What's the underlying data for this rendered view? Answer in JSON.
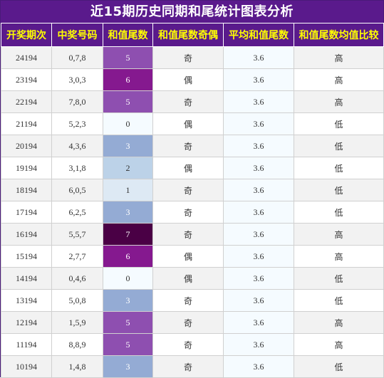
{
  "title": "近15期历史同期和尾统计图表分析",
  "headers": [
    "开奖期次",
    "中奖号码",
    "和值尾数",
    "和值尾数奇偶",
    "平均和值尾数",
    "和值尾数均值比较"
  ],
  "rows": [
    {
      "period": "24194",
      "numbers": "0,7,8",
      "tail": "5",
      "parity": "奇",
      "avg": "3.6",
      "compare": "高",
      "color": "#8e4fb0"
    },
    {
      "period": "23194",
      "numbers": "3,0,3",
      "tail": "6",
      "parity": "偶",
      "avg": "3.6",
      "compare": "高",
      "color": "#85198f"
    },
    {
      "period": "22194",
      "numbers": "7,8,0",
      "tail": "5",
      "parity": "奇",
      "avg": "3.6",
      "compare": "高",
      "color": "#8e4fb0"
    },
    {
      "period": "21194",
      "numbers": "5,2,3",
      "tail": "0",
      "parity": "偶",
      "avg": "3.6",
      "compare": "低",
      "color": "#f5fbff"
    },
    {
      "period": "20194",
      "numbers": "4,3,6",
      "tail": "3",
      "parity": "奇",
      "avg": "3.6",
      "compare": "低",
      "color": "#94abd4"
    },
    {
      "period": "19194",
      "numbers": "3,1,8",
      "tail": "2",
      "parity": "偶",
      "avg": "3.6",
      "compare": "低",
      "color": "#bcd2e8"
    },
    {
      "period": "18194",
      "numbers": "6,0,5",
      "tail": "1",
      "parity": "奇",
      "avg": "3.6",
      "compare": "低",
      "color": "#dde9f4"
    },
    {
      "period": "17194",
      "numbers": "6,2,5",
      "tail": "3",
      "parity": "奇",
      "avg": "3.6",
      "compare": "低",
      "color": "#94abd4"
    },
    {
      "period": "16194",
      "numbers": "5,5,7",
      "tail": "7",
      "parity": "奇",
      "avg": "3.6",
      "compare": "高",
      "color": "#4a0045"
    },
    {
      "period": "15194",
      "numbers": "2,7,7",
      "tail": "6",
      "parity": "偶",
      "avg": "3.6",
      "compare": "高",
      "color": "#85198f"
    },
    {
      "period": "14194",
      "numbers": "0,4,6",
      "tail": "0",
      "parity": "偶",
      "avg": "3.6",
      "compare": "低",
      "color": "#f5fbff"
    },
    {
      "period": "13194",
      "numbers": "5,0,8",
      "tail": "3",
      "parity": "奇",
      "avg": "3.6",
      "compare": "低",
      "color": "#94abd4"
    },
    {
      "period": "12194",
      "numbers": "1,5,9",
      "tail": "5",
      "parity": "奇",
      "avg": "3.6",
      "compare": "高",
      "color": "#8e4fb0"
    },
    {
      "period": "11194",
      "numbers": "8,8,9",
      "tail": "5",
      "parity": "奇",
      "avg": "3.6",
      "compare": "高",
      "color": "#8e4fb0"
    },
    {
      "period": "10194",
      "numbers": "1,4,8",
      "tail": "3",
      "parity": "奇",
      "avg": "3.6",
      "compare": "低",
      "color": "#94abd4"
    }
  ]
}
